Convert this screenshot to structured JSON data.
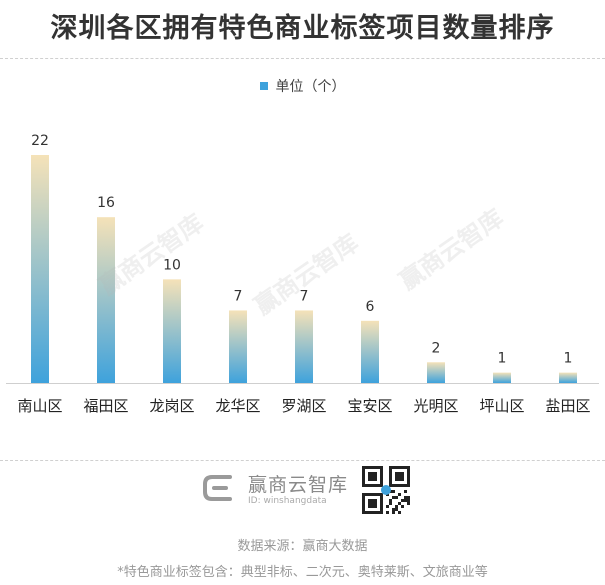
{
  "title": "深圳各区拥有特色商业标签项目数量排序",
  "chart_data": {
    "type": "bar",
    "categories": [
      "南山区",
      "福田区",
      "龙岗区",
      "龙华区",
      "罗湖区",
      "宝安区",
      "光明区",
      "坪山区",
      "盐田区"
    ],
    "series": [
      {
        "name": "单位（个）",
        "values": [
          22,
          16,
          10,
          7,
          7,
          6,
          2,
          1,
          1
        ]
      }
    ],
    "title": "",
    "xlabel": "",
    "ylabel": "",
    "ylim": [
      0,
      22
    ],
    "grid": false,
    "legend": "top-center",
    "colors": {
      "bar_bottom": "#3ea2dc",
      "bar_top": "#f5e2b8",
      "legend": "#3ea2dc"
    }
  },
  "watermark": "赢商云智库",
  "brand": {
    "name": "赢商云智库",
    "id": "ID: winshangdata"
  },
  "source": "数据来源：赢商大数据",
  "note": "*特色商业标签包含：典型非标、二次元、奥特莱斯、文旅商业等"
}
